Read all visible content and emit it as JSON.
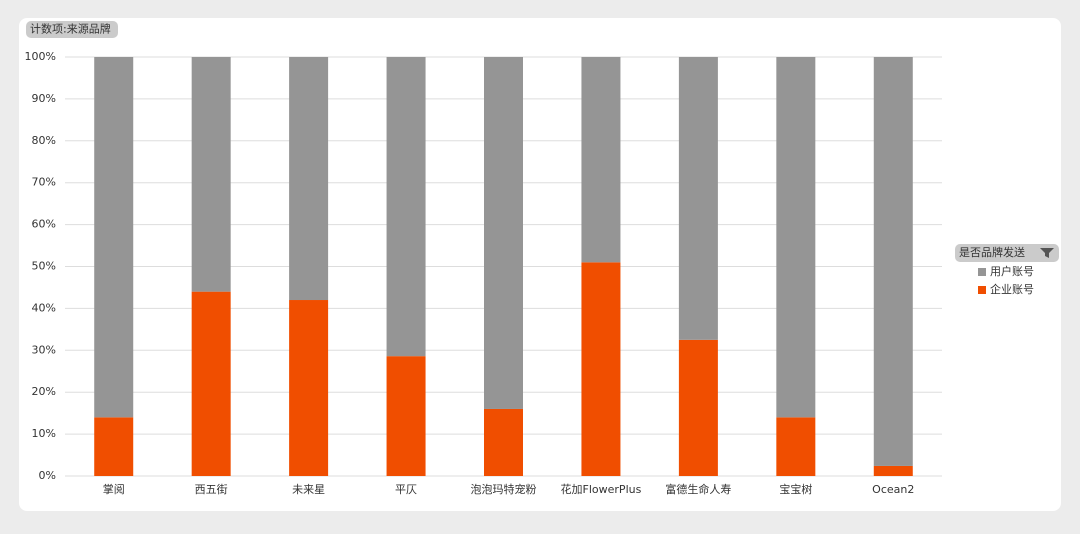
{
  "chart_data": {
    "type": "stacked-bar",
    "title": "计数项:来源品牌",
    "legend_title": "是否品牌发送",
    "categories": [
      "掌阅",
      "西五街",
      "未来星",
      "平仄",
      "泡泡玛特宠粉",
      "花加FlowerPlus",
      "富德生命人寿",
      "宝宝树",
      "Ocean2"
    ],
    "series": [
      {
        "name": "企业账号",
        "color": "#f04e00",
        "values": [
          14,
          44,
          42,
          28.6,
          16,
          51,
          32.5,
          14,
          2.4
        ]
      },
      {
        "name": "用户账号",
        "color": "#959595",
        "values": [
          86,
          56,
          58,
          71.4,
          84,
          49,
          67.5,
          86,
          97.6
        ]
      }
    ],
    "ylim": [
      0,
      100
    ],
    "yticks": [
      {
        "value": 0,
        "label": "0%"
      },
      {
        "value": 10,
        "label": "10%"
      },
      {
        "value": 20,
        "label": "20%"
      },
      {
        "value": 30,
        "label": "30%"
      },
      {
        "value": 40,
        "label": "40%"
      },
      {
        "value": 50,
        "label": "50%"
      },
      {
        "value": 60,
        "label": "60%"
      },
      {
        "value": 70,
        "label": "70%"
      },
      {
        "value": 80,
        "label": "80%"
      },
      {
        "value": 90,
        "label": "90%"
      },
      {
        "value": 100,
        "label": "100%"
      }
    ],
    "grid": true
  }
}
